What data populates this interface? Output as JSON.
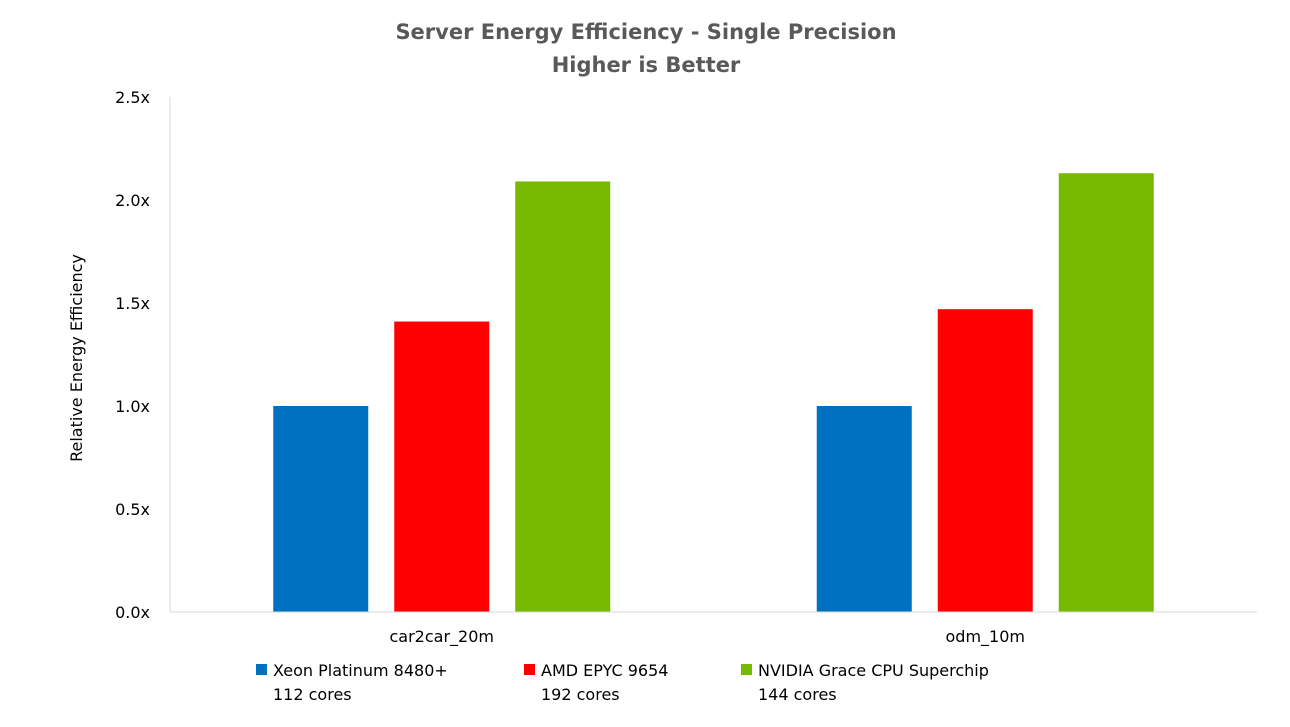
{
  "chart_data": {
    "type": "bar",
    "title": "Server Energy Efficiency - Single Precision",
    "subtitle": "Higher is Better",
    "xlabel": "",
    "ylabel": "Relative Energy Efficiency",
    "ylim": [
      0,
      2.5
    ],
    "yticks": [
      {
        "value": 0,
        "label": "0.0x"
      },
      {
        "value": 0.5,
        "label": "0.5x"
      },
      {
        "value": 1.0,
        "label": "1.0x"
      },
      {
        "value": 1.5,
        "label": "1.5x"
      },
      {
        "value": 2.0,
        "label": "2.0x"
      },
      {
        "value": 2.5,
        "label": "2.5x"
      }
    ],
    "categories": [
      "car2car_20m",
      "odm_10m"
    ],
    "series": [
      {
        "name": "Xeon Platinum 8480+",
        "note": "112 cores",
        "color": "#0070c0",
        "values": [
          1.0,
          1.0
        ]
      },
      {
        "name": "AMD EPYC 9654",
        "note": "192 cores",
        "color": "#ff0000",
        "values": [
          1.41,
          1.47
        ]
      },
      {
        "name": "NVIDIA Grace CPU Superchip",
        "note": "144 cores",
        "color": "#76b900",
        "values": [
          2.09,
          2.13
        ]
      }
    ],
    "grid": false,
    "legend": "bottom"
  }
}
